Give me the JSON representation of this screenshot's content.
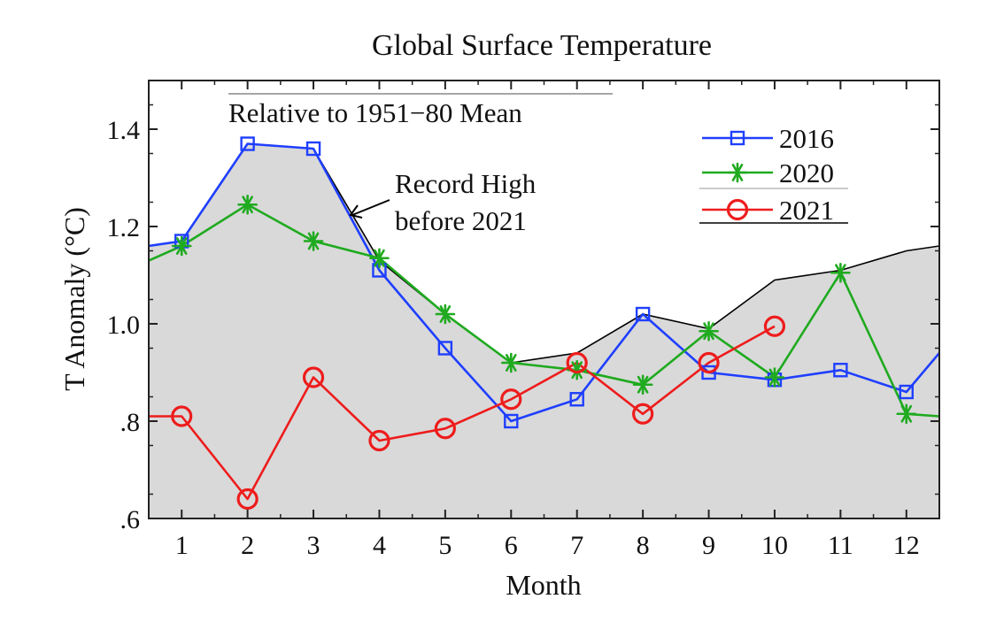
{
  "chart_data": {
    "type": "line",
    "title": "Global Surface Temperature",
    "xlabel": "Month",
    "ylabel": "T Anomaly (°C)",
    "xlim": [
      0.5,
      12.5
    ],
    "ylim": [
      0.6,
      1.5
    ],
    "x_ticks": [
      1,
      2,
      3,
      4,
      5,
      6,
      7,
      8,
      9,
      10,
      11,
      12
    ],
    "x_tick_labels": [
      "1",
      "2",
      "3",
      "4",
      "5",
      "6",
      "7",
      "8",
      "9",
      "10",
      "11",
      "12"
    ],
    "y_ticks": [
      0.6,
      0.8,
      1.0,
      1.2,
      1.4
    ],
    "y_tick_labels": [
      ".6",
      ".8",
      "1.0",
      "1.2",
      "1.4"
    ],
    "grid": false,
    "legend_position": "top-right",
    "annotations": {
      "baseline_note": "Relative to 1951−80 Mean",
      "record_note_line1": "Record High",
      "record_note_line2": "before 2021"
    },
    "record_high": {
      "x": [
        0.5,
        1,
        2,
        3,
        4,
        5,
        6,
        7,
        8,
        9,
        10,
        11,
        12,
        12.5
      ],
      "values": [
        1.16,
        1.17,
        1.37,
        1.36,
        1.13,
        1.02,
        0.92,
        0.94,
        1.02,
        0.99,
        1.09,
        1.11,
        1.15,
        1.16
      ],
      "fill_color": "#d9d9d9",
      "line_color": "#000000"
    },
    "series": [
      {
        "name": "2016",
        "color": "#1f3fff",
        "marker": "square",
        "x": [
          0.5,
          1,
          2,
          3,
          4,
          5,
          6,
          7,
          8,
          9,
          10,
          11,
          12,
          12.5
        ],
        "values": [
          1.16,
          1.17,
          1.37,
          1.36,
          1.11,
          0.95,
          0.8,
          0.845,
          1.02,
          0.9,
          0.885,
          0.905,
          0.86,
          0.94
        ],
        "marker_x": [
          1,
          2,
          3,
          4,
          5,
          6,
          7,
          8,
          9,
          10,
          11,
          12
        ]
      },
      {
        "name": "2020",
        "color": "#1faa1f",
        "marker": "asterisk",
        "x": [
          0.5,
          1,
          2,
          3,
          4,
          5,
          6,
          7,
          8,
          9,
          10,
          11,
          12,
          12.5
        ],
        "values": [
          1.13,
          1.16,
          1.245,
          1.17,
          1.135,
          1.02,
          0.92,
          0.905,
          0.875,
          0.985,
          0.89,
          1.105,
          0.815,
          0.81
        ],
        "marker_x": [
          1,
          2,
          3,
          4,
          5,
          6,
          7,
          8,
          9,
          10,
          11,
          12
        ]
      },
      {
        "name": "2021",
        "color": "#ee1c1c",
        "marker": "circle",
        "x": [
          0.5,
          1,
          2,
          3,
          4,
          5,
          6,
          7,
          8,
          9,
          10
        ],
        "values": [
          0.81,
          0.81,
          0.64,
          0.89,
          0.76,
          0.785,
          0.845,
          0.92,
          0.815,
          0.92,
          0.995
        ],
        "marker_x": [
          1,
          2,
          3,
          4,
          5,
          6,
          7,
          8,
          9,
          10
        ]
      }
    ]
  }
}
